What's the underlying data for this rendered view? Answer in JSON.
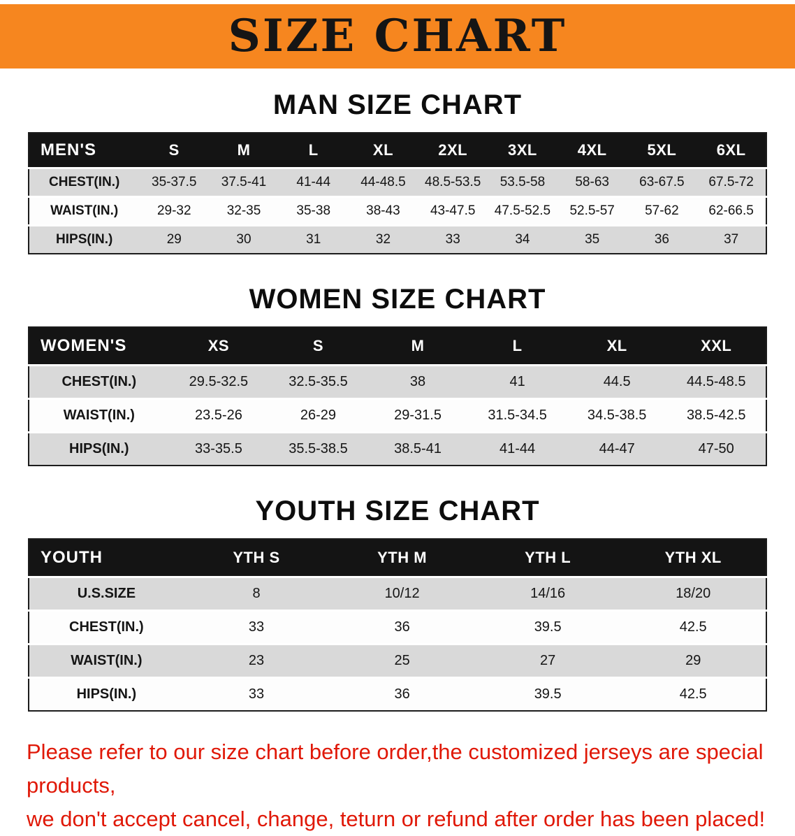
{
  "banner": {
    "title": "SIZE CHART"
  },
  "colors": {
    "banner_bg": "#f6861f",
    "table_header_bg": "#141414",
    "table_header_text": "#ffffff",
    "row_alt_bg": "#d9d9d9",
    "footer_text": "#e01807"
  },
  "sections": [
    {
      "heading": "MAN SIZE CHART",
      "table": {
        "header": [
          "MEN'S",
          "S",
          "M",
          "L",
          "XL",
          "2XL",
          "3XL",
          "4XL",
          "5XL",
          "6XL"
        ],
        "rows": [
          [
            "CHEST(IN.)",
            "35-37.5",
            "37.5-41",
            "41-44",
            "44-48.5",
            "48.5-53.5",
            "53.5-58",
            "58-63",
            "63-67.5",
            "67.5-72"
          ],
          [
            "WAIST(IN.)",
            "29-32",
            "32-35",
            "35-38",
            "38-43",
            "43-47.5",
            "47.5-52.5",
            "52.5-57",
            "57-62",
            "62-66.5"
          ],
          [
            "HIPS(IN.)",
            "29",
            "30",
            "31",
            "32",
            "33",
            "34",
            "35",
            "36",
            "37"
          ]
        ]
      }
    },
    {
      "heading": "WOMEN SIZE CHART",
      "table": {
        "header": [
          "WOMEN'S",
          "XS",
          "S",
          "M",
          "L",
          "XL",
          "XXL"
        ],
        "rows": [
          [
            "CHEST(IN.)",
            "29.5-32.5",
            "32.5-35.5",
            "38",
            "41",
            "44.5",
            "44.5-48.5"
          ],
          [
            "WAIST(IN.)",
            "23.5-26",
            "26-29",
            "29-31.5",
            "31.5-34.5",
            "34.5-38.5",
            "38.5-42.5"
          ],
          [
            "HIPS(IN.)",
            "33-35.5",
            "35.5-38.5",
            "38.5-41",
            "41-44",
            "44-47",
            "47-50"
          ]
        ]
      }
    },
    {
      "heading": "YOUTH SIZE CHART",
      "table": {
        "header": [
          "YOUTH",
          "YTH S",
          "YTH M",
          "YTH L",
          "YTH XL"
        ],
        "rows": [
          [
            "U.S.SIZE",
            "8",
            "10/12",
            "14/16",
            "18/20"
          ],
          [
            "CHEST(IN.)",
            "33",
            "36",
            "39.5",
            "42.5"
          ],
          [
            "WAIST(IN.)",
            "23",
            "25",
            "27",
            "29"
          ],
          [
            "HIPS(IN.)",
            "33",
            "36",
            "39.5",
            "42.5"
          ]
        ]
      }
    }
  ],
  "footer": {
    "line1": "Please refer to our size chart before order,the customized jerseys are special products,",
    "line2": "we don't accept cancel, change, teturn or refund after order has been placed!"
  }
}
